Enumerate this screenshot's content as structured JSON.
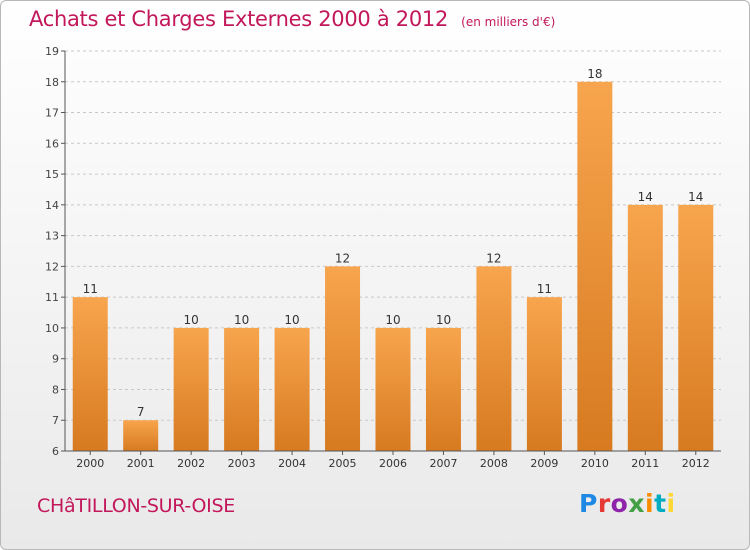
{
  "header": {
    "title": "Achats et Charges Externes 2000 à 2012",
    "subtitle": "(en milliers d'€)"
  },
  "footer": {
    "commune": "CHâTILLON-SUR-OISE",
    "logo_letters": [
      "P",
      "r",
      "o",
      "x",
      "i",
      "t",
      "i"
    ]
  },
  "colors": {
    "bar_top": "#f7a54e",
    "bar_bottom": "#d77a20",
    "title": "#c2185b"
  },
  "chart_data": {
    "type": "bar",
    "categories": [
      "2000",
      "2001",
      "2002",
      "2003",
      "2004",
      "2005",
      "2006",
      "2007",
      "2008",
      "2009",
      "2010",
      "2011",
      "2012"
    ],
    "values": [
      11,
      7,
      10,
      10,
      10,
      12,
      10,
      10,
      12,
      11,
      18,
      14,
      14
    ],
    "ylim": [
      6,
      19
    ],
    "yticks": [
      6,
      7,
      8,
      9,
      10,
      11,
      12,
      13,
      14,
      15,
      16,
      17,
      18,
      19
    ],
    "grid": true,
    "xlabel": "",
    "ylabel": ""
  }
}
